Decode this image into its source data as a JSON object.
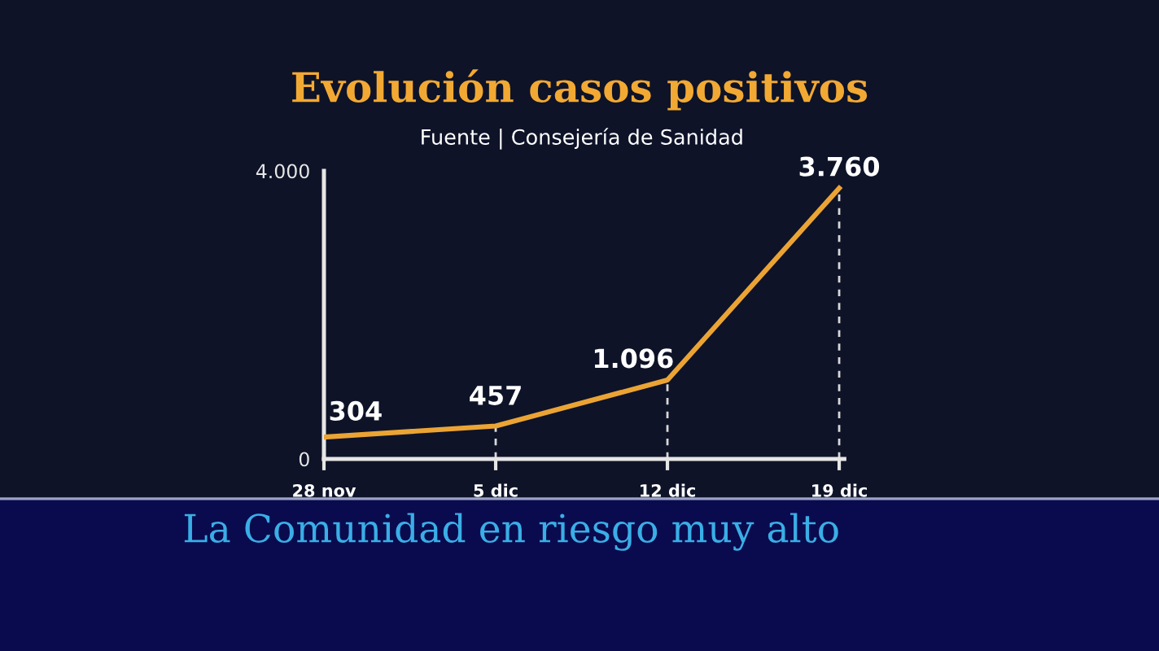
{
  "chart_data": {
    "type": "line",
    "title": "Evolución casos positivos",
    "subtitle": "Fuente | Consejería de Sanidad",
    "categories": [
      "28 nov",
      "5 dic",
      "12 dic",
      "19 dic"
    ],
    "series": [
      {
        "color": "#eba434",
        "values": [
          304,
          457,
          1096,
          3760
        ],
        "value_labels": [
          "304",
          "457",
          "1.096",
          "3.760"
        ]
      }
    ],
    "ylim": [
      0,
      4000
    ],
    "yticks": [
      0,
      {
        "value": 4000,
        "label": "4.000"
      }
    ],
    "grid": "x",
    "marker": "none",
    "line_style": "solid",
    "annotations": [
      "La Comunidad en riesgo muy alto"
    ]
  }
}
